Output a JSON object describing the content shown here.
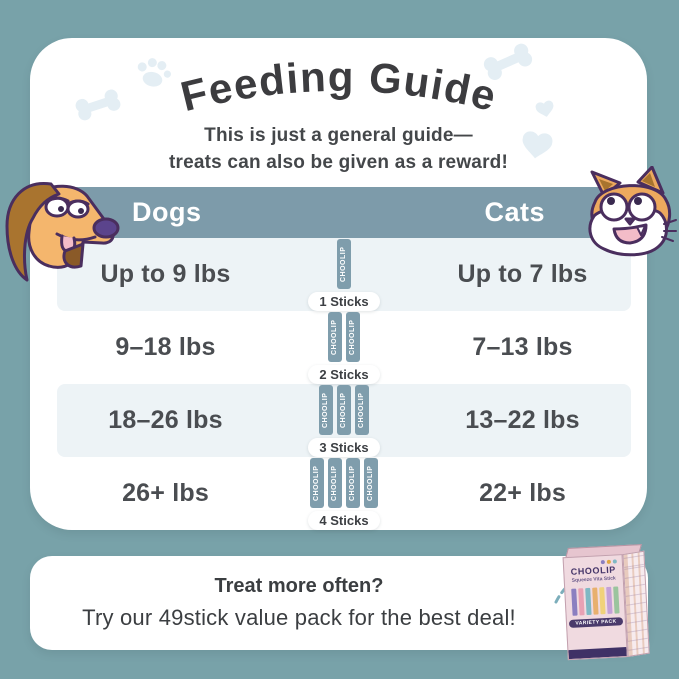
{
  "colors": {
    "background": "#78a2a9",
    "card": "#ffffff",
    "header_band": "#7d9baa",
    "row_alternate": "#edf3f6",
    "stick": "#7f9dac",
    "title_text": "#3c3c3f",
    "body_text": "#44474a",
    "brand_purple": "#4a3a6b",
    "box_pink": "#f0dae0",
    "arrow_teal": "#7caebb",
    "decoration_blue": "#e4eef4"
  },
  "title": {
    "text": "Feeding Guide"
  },
  "subtitle": {
    "line1": "This is just a general guide—",
    "line2": "treats can also be given as a reward!"
  },
  "table": {
    "dog_header": "Dogs",
    "cat_header": "Cats",
    "stick_brand": "CHOOLIP",
    "rows": [
      {
        "dog": "Up to 9 lbs",
        "sticks": 1,
        "label": "1 Sticks",
        "cat": "Up to 7 lbs"
      },
      {
        "dog": "9–18 lbs",
        "sticks": 2,
        "label": "2 Sticks",
        "cat": "7–13 lbs"
      },
      {
        "dog": "18–26 lbs",
        "sticks": 3,
        "label": "3 Sticks",
        "cat": "13–22 lbs"
      },
      {
        "dog": "26+ lbs",
        "sticks": 4,
        "label": "4 Sticks",
        "cat": "22+ lbs"
      }
    ]
  },
  "footer": {
    "heading": "Treat more often?",
    "text": "Try our 49stick value pack for the best deal!"
  },
  "product_box": {
    "brand": "CHOOLIP",
    "subtitle": "Squeeze Vita Stick",
    "banner": "VARIETY PACK",
    "stick_colors": [
      "#8b7fc0",
      "#e8a1b4",
      "#7fb8c4",
      "#e8b06e",
      "#f0d27a",
      "#c4a1d8",
      "#9bc49e"
    ]
  },
  "decorations": [
    "paw-icon",
    "bone-icon",
    "bone-icon",
    "heart-icon",
    "heart-icon"
  ],
  "illustrations": [
    "dog-illustration",
    "cat-illustration"
  ]
}
